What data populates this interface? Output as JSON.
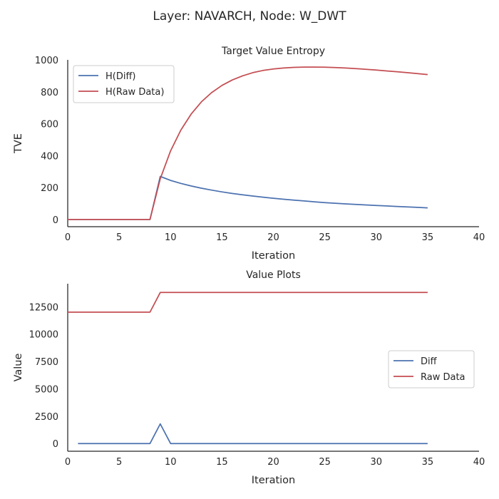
{
  "suptitle": "Layer: NAVARCH, Node: W_DWT",
  "colors": {
    "diff": "#4c72b0",
    "raw": "#c44e52",
    "axis": "#262626"
  },
  "chart_data": [
    {
      "type": "line",
      "title": "Target Value Entropy",
      "xlabel": "Iteration",
      "ylabel": "TVE",
      "xlim": [
        0,
        40
      ],
      "ylim": [
        -45,
        1000
      ],
      "xticks": [
        0,
        5,
        10,
        15,
        20,
        25,
        30,
        35,
        40
      ],
      "yticks": [
        0,
        200,
        400,
        600,
        800,
        1000
      ],
      "grid": false,
      "legend": "top-left",
      "series": [
        {
          "name": "H(Diff)",
          "color": "#4c72b0",
          "x": [
            0,
            1,
            2,
            3,
            4,
            5,
            6,
            7,
            8,
            9,
            10,
            11,
            12,
            13,
            14,
            15,
            16,
            17,
            18,
            19,
            20,
            21,
            22,
            23,
            24,
            25,
            26,
            27,
            28,
            29,
            30,
            31,
            32,
            33,
            34,
            35
          ],
          "y": [
            0,
            0,
            0,
            0,
            0,
            0,
            0,
            0,
            0,
            270,
            245,
            226,
            210,
            196,
            184,
            173,
            163,
            155,
            147,
            140,
            133,
            127,
            121,
            116,
            111,
            106,
            102,
            98,
            95,
            91,
            88,
            85,
            82,
            79,
            76,
            73
          ]
        },
        {
          "name": "H(Raw Data)",
          "color": "#c44e52",
          "x": [
            0,
            1,
            2,
            3,
            4,
            5,
            6,
            7,
            8,
            9,
            10,
            11,
            12,
            13,
            14,
            15,
            16,
            17,
            18,
            19,
            20,
            21,
            22,
            23,
            24,
            25,
            26,
            27,
            28,
            29,
            30,
            31,
            32,
            33,
            34,
            35
          ],
          "y": [
            0,
            0,
            0,
            0,
            0,
            0,
            0,
            0,
            0,
            255,
            430,
            560,
            660,
            737,
            795,
            840,
            874,
            900,
            920,
            934,
            943,
            949,
            953,
            955,
            955,
            954,
            952,
            949,
            945,
            941,
            936,
            931,
            926,
            920,
            914,
            908
          ]
        }
      ]
    },
    {
      "type": "line",
      "title": "Value Plots",
      "xlabel": "Iteration",
      "ylabel": "Value",
      "xlim": [
        0,
        40
      ],
      "ylim": [
        -700,
        14600
      ],
      "xticks": [
        0,
        5,
        10,
        15,
        20,
        25,
        30,
        35,
        40
      ],
      "yticks": [
        0,
        2500,
        5000,
        7500,
        10000,
        12500
      ],
      "grid": false,
      "legend": "right",
      "series": [
        {
          "name": "Diff",
          "color": "#4c72b0",
          "x": [
            1,
            2,
            3,
            4,
            5,
            6,
            7,
            8,
            9,
            10,
            11,
            12,
            13,
            14,
            15,
            16,
            17,
            18,
            19,
            20,
            21,
            22,
            23,
            24,
            25,
            26,
            27,
            28,
            29,
            30,
            31,
            32,
            33,
            34,
            35
          ],
          "y": [
            0,
            0,
            0,
            0,
            0,
            0,
            0,
            0,
            1800,
            0,
            0,
            0,
            0,
            0,
            0,
            0,
            0,
            0,
            0,
            0,
            0,
            0,
            0,
            0,
            0,
            0,
            0,
            0,
            0,
            0,
            0,
            0,
            0,
            0,
            0
          ]
        },
        {
          "name": "Raw Data",
          "color": "#c44e52",
          "x": [
            0,
            1,
            2,
            3,
            4,
            5,
            6,
            7,
            8,
            9,
            10,
            11,
            12,
            13,
            14,
            15,
            16,
            17,
            18,
            19,
            20,
            21,
            22,
            23,
            24,
            25,
            26,
            27,
            28,
            29,
            30,
            31,
            32,
            33,
            34,
            35
          ],
          "y": [
            12000,
            12000,
            12000,
            12000,
            12000,
            12000,
            12000,
            12000,
            12000,
            13800,
            13800,
            13800,
            13800,
            13800,
            13800,
            13800,
            13800,
            13800,
            13800,
            13800,
            13800,
            13800,
            13800,
            13800,
            13800,
            13800,
            13800,
            13800,
            13800,
            13800,
            13800,
            13800,
            13800,
            13800,
            13800,
            13800
          ]
        }
      ]
    }
  ]
}
